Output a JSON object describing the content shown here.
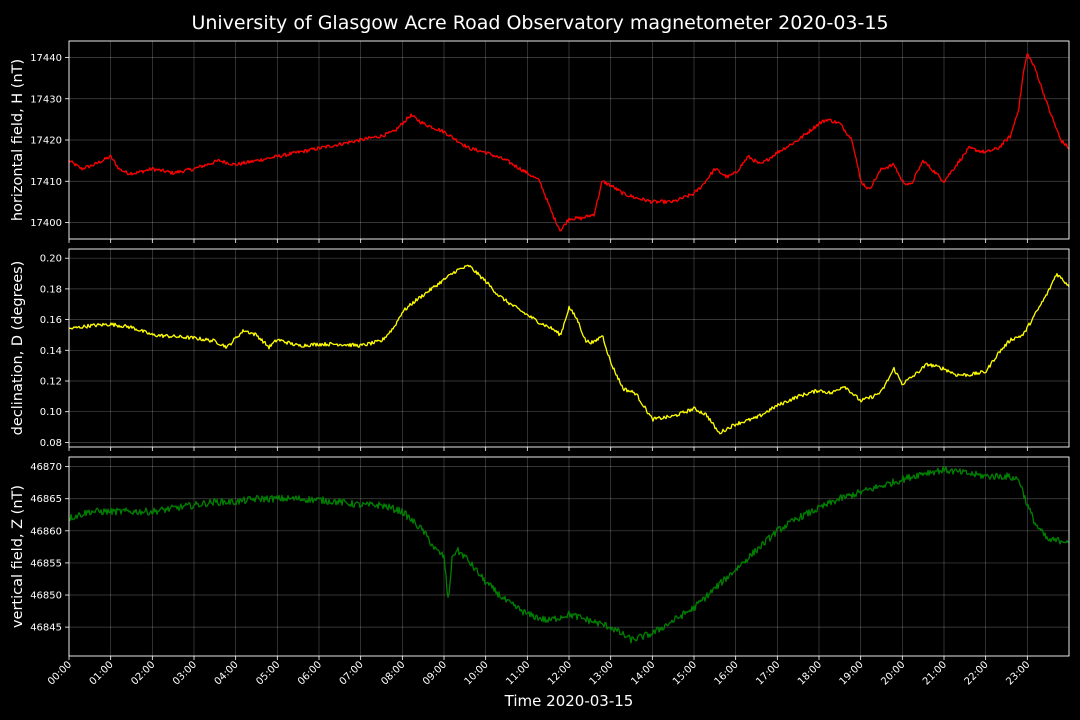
{
  "chart_data": {
    "type": "line",
    "title": "University of Glasgow Acre Road Observatory magnetometer 2020-03-15",
    "xlabel": "Time 2020-03-15",
    "x_tick_labels": [
      "00:00",
      "01:00",
      "02:00",
      "03:00",
      "04:00",
      "05:00",
      "06:00",
      "07:00",
      "08:00",
      "09:00",
      "10:00",
      "11:00",
      "12:00",
      "13:00",
      "14:00",
      "15:00",
      "16:00",
      "17:00",
      "18:00",
      "19:00",
      "20:00",
      "21:00",
      "22:00",
      "23:00"
    ],
    "xlim_hours": [
      0,
      24
    ],
    "grid": true,
    "panels": [
      {
        "id": "horizontal",
        "ylabel": "horizontal field, H (nT)",
        "color": "#ff0000",
        "ylim": [
          17396,
          17444
        ],
        "yticks": [
          17400,
          17410,
          17420,
          17430,
          17440
        ],
        "noise": 0.45,
        "series": {
          "name": "H",
          "x": [
            0,
            0.3,
            0.6,
            1.0,
            1.2,
            1.4,
            1.6,
            2.0,
            2.5,
            3.0,
            3.3,
            3.6,
            4.0,
            4.5,
            5.0,
            5.5,
            6.0,
            6.5,
            7.0,
            7.5,
            7.8,
            8.0,
            8.2,
            8.5,
            9.0,
            9.3,
            9.6,
            10.0,
            10.5,
            11.0,
            11.3,
            11.6,
            11.8,
            12.0,
            12.3,
            12.6,
            12.8,
            13.0,
            13.3,
            13.6,
            14.0,
            14.5,
            15.0,
            15.2,
            15.5,
            15.8,
            16.0,
            16.3,
            16.6,
            17.0,
            17.5,
            18.0,
            18.2,
            18.5,
            18.8,
            19.0,
            19.2,
            19.5,
            19.8,
            20.0,
            20.2,
            20.5,
            20.8,
            21.0,
            21.3,
            21.6,
            22.0,
            22.3,
            22.6,
            22.8,
            22.9,
            23.0,
            23.2,
            23.5,
            23.8,
            24.0
          ],
          "y": [
            17415,
            17413,
            17414,
            17416,
            17413,
            17412,
            17412,
            17413,
            17412,
            17413,
            17414,
            17415,
            17414,
            17415,
            17416,
            17417,
            17418,
            17419,
            17420,
            17421,
            17422,
            17424,
            17426,
            17424,
            17422,
            17420,
            17418,
            17417,
            17415,
            17412,
            17410,
            17402,
            17398,
            17401,
            17401,
            17402,
            17410,
            17409,
            17407,
            17406,
            17405,
            17405,
            17407,
            17409,
            17413,
            17411,
            17412,
            17416,
            17414,
            17417,
            17420,
            17424,
            17425,
            17424,
            17420,
            17410,
            17408,
            17413,
            17414,
            17410,
            17409,
            17415,
            17412,
            17410,
            17414,
            17418,
            17417,
            17418,
            17421,
            17428,
            17436,
            17441,
            17437,
            17428,
            17420,
            17418
          ]
        }
      },
      {
        "id": "declination",
        "ylabel": "declination, D (degrees)",
        "color": "#ffff00",
        "ylim": [
          0.077,
          0.206
        ],
        "yticks": [
          0.08,
          0.1,
          0.12,
          0.14,
          0.16,
          0.18,
          0.2
        ],
        "noise": 0.0012,
        "series": {
          "name": "D",
          "x": [
            0,
            0.5,
            1.0,
            1.5,
            2.0,
            2.5,
            3.0,
            3.5,
            3.8,
            4.0,
            4.2,
            4.5,
            4.8,
            5.0,
            5.5,
            6.0,
            6.5,
            7.0,
            7.5,
            7.8,
            8.0,
            8.3,
            8.6,
            9.0,
            9.3,
            9.6,
            10.0,
            10.3,
            10.6,
            11.0,
            11.3,
            11.6,
            11.8,
            12.0,
            12.2,
            12.4,
            12.6,
            12.8,
            13.0,
            13.3,
            13.6,
            14.0,
            14.5,
            15.0,
            15.3,
            15.6,
            16.0,
            16.5,
            17.0,
            17.5,
            18.0,
            18.3,
            18.6,
            19.0,
            19.3,
            19.5,
            19.8,
            20.0,
            20.3,
            20.6,
            21.0,
            21.3,
            21.6,
            22.0,
            22.3,
            22.6,
            22.9,
            23.2,
            23.5,
            23.7,
            24.0
          ],
          "y": [
            0.154,
            0.156,
            0.157,
            0.155,
            0.15,
            0.149,
            0.148,
            0.146,
            0.142,
            0.148,
            0.153,
            0.15,
            0.142,
            0.147,
            0.143,
            0.144,
            0.144,
            0.143,
            0.146,
            0.155,
            0.165,
            0.172,
            0.178,
            0.186,
            0.192,
            0.195,
            0.185,
            0.176,
            0.17,
            0.163,
            0.158,
            0.154,
            0.15,
            0.168,
            0.16,
            0.146,
            0.145,
            0.15,
            0.132,
            0.115,
            0.112,
            0.095,
            0.097,
            0.102,
            0.098,
            0.086,
            0.092,
            0.096,
            0.104,
            0.11,
            0.114,
            0.112,
            0.117,
            0.107,
            0.11,
            0.113,
            0.128,
            0.118,
            0.124,
            0.131,
            0.128,
            0.124,
            0.124,
            0.126,
            0.138,
            0.147,
            0.15,
            0.164,
            0.178,
            0.19,
            0.182
          ]
        }
      },
      {
        "id": "vertical",
        "ylabel": "vertical field, Z (nT)",
        "color": "#008000",
        "ylim": [
          46840.5,
          46871.5
        ],
        "yticks": [
          46845,
          46850,
          46855,
          46860,
          46865,
          46870
        ],
        "noise": 0.55,
        "series": {
          "name": "Z",
          "x": [
            0,
            0.5,
            1.0,
            1.5,
            2.0,
            2.5,
            3.0,
            3.5,
            4.0,
            4.5,
            5.0,
            5.5,
            6.0,
            6.5,
            7.0,
            7.5,
            8.0,
            8.5,
            8.8,
            9.0,
            9.1,
            9.2,
            9.3,
            9.5,
            10.0,
            10.5,
            11.0,
            11.5,
            12.0,
            12.5,
            13.0,
            13.5,
            14.0,
            14.5,
            15.0,
            15.5,
            16.0,
            16.5,
            17.0,
            17.5,
            18.0,
            18.5,
            19.0,
            19.5,
            20.0,
            20.5,
            21.0,
            21.5,
            22.0,
            22.5,
            22.8,
            23.0,
            23.2,
            23.5,
            24.0
          ],
          "y": [
            46862,
            46863,
            46863,
            46863,
            46863,
            46863.5,
            46864,
            46864.5,
            46864.5,
            46865,
            46865,
            46865,
            46864.8,
            46864.5,
            46864,
            46864,
            46863,
            46860,
            46857,
            46856,
            46849,
            46856,
            46857,
            46856,
            46852,
            46849,
            46847,
            46846,
            46847,
            46846,
            46845,
            46843,
            46844,
            46846,
            46848,
            46851,
            46854,
            46857,
            46860,
            46862,
            46863.5,
            46865,
            46866,
            46867,
            46868,
            46869,
            46869.5,
            46869,
            46868.5,
            46868.5,
            46868,
            46864,
            46861,
            46858.5,
            46858.5
          ]
        }
      }
    ]
  }
}
